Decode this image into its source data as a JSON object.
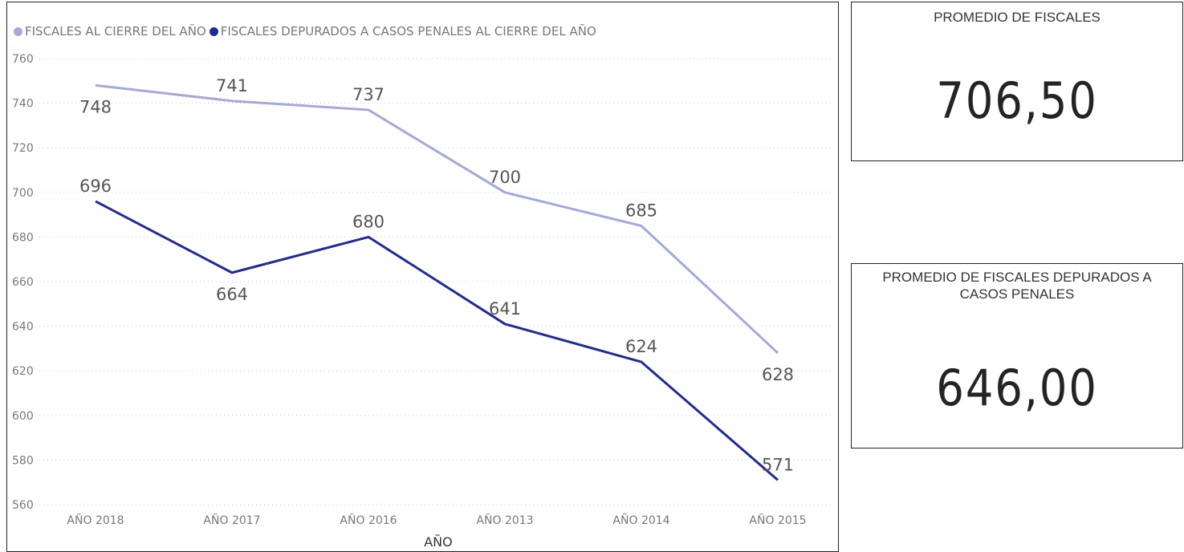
{
  "chart_data": {
    "type": "line",
    "categories": [
      "AÑO 2018",
      "AÑO 2017",
      "AÑO 2016",
      "AÑO 2013",
      "AÑO 2014",
      "AÑO 2015"
    ],
    "xlabel": "AÑO",
    "ylabel": "",
    "ylim": [
      560,
      760
    ],
    "yticks": [
      560,
      580,
      600,
      620,
      640,
      660,
      680,
      700,
      720,
      740,
      760
    ],
    "grid": true,
    "legend_position": "top-left",
    "series": [
      {
        "name": "FISCALES AL CIERRE DEL AÑO",
        "color": "#a4a9dc",
        "values": [
          748,
          741,
          737,
          700,
          685,
          628
        ],
        "labels": [
          "748",
          "741",
          "737",
          "700",
          "685",
          "628"
        ]
      },
      {
        "name": "FISCALES DEPURADOS A CASOS PENALES AL CIERRE DEL AÑO",
        "color": "#1f2a9a",
        "values": [
          696,
          664,
          680,
          641,
          624,
          571
        ],
        "labels": [
          "696",
          "664",
          "680",
          "641",
          "624",
          "571"
        ]
      }
    ]
  },
  "cards": [
    {
      "title": "PROMEDIO DE FISCALES",
      "value": "706,50"
    },
    {
      "title": "PROMEDIO DE FISCALES DEPURADOS A CASOS PENALES",
      "value": "646,00"
    }
  ]
}
